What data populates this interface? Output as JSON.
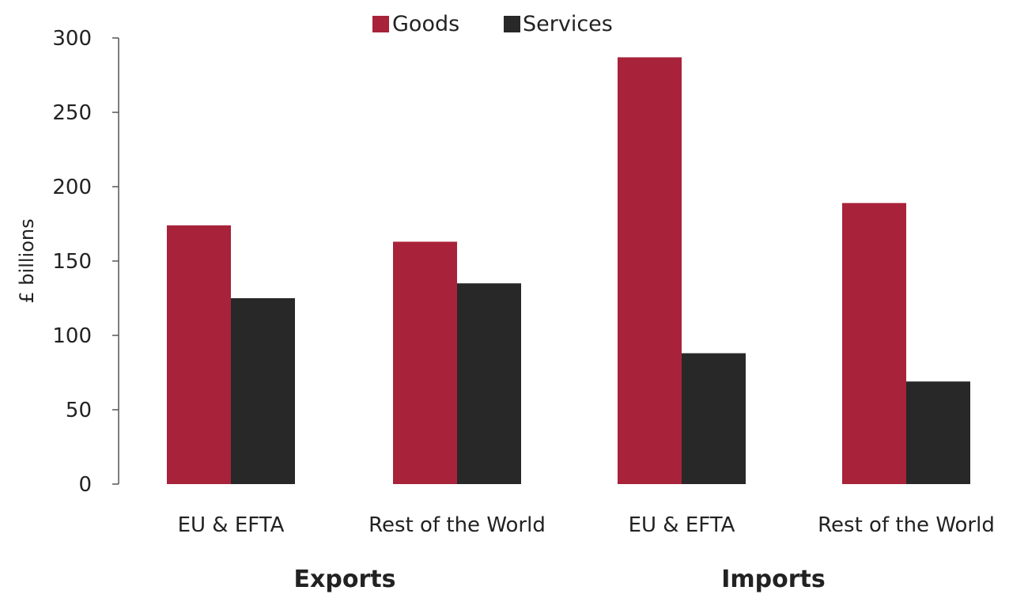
{
  "chart_data": {
    "type": "bar",
    "title": "",
    "ylabel": "£ billions",
    "xlabel": "",
    "ylim": [
      0,
      300
    ],
    "yticks": [
      0,
      50,
      100,
      150,
      200,
      250,
      300
    ],
    "categories": [
      "EU & EFTA",
      "Rest of the World",
      "EU & EFTA",
      "Rest of the World"
    ],
    "groups": [
      {
        "label": "Exports",
        "categories": [
          0,
          1
        ]
      },
      {
        "label": "Imports",
        "categories": [
          2,
          3
        ]
      }
    ],
    "series": [
      {
        "name": "Goods",
        "color": "#a8233a",
        "values": [
          174,
          163,
          287,
          189
        ]
      },
      {
        "name": "Services",
        "color": "#282828",
        "values": [
          125,
          135,
          88,
          69
        ]
      }
    ],
    "legend_position": "top-center",
    "grid": false
  }
}
